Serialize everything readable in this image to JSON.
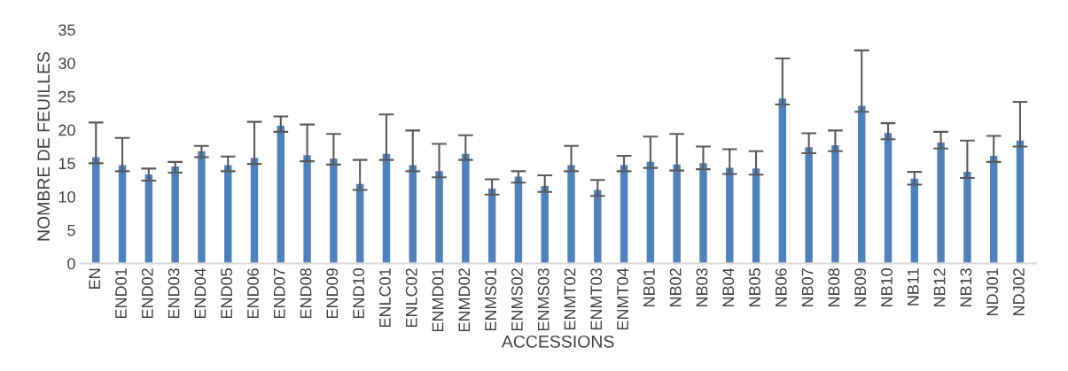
{
  "chart_data": {
    "type": "bar",
    "xlabel": "ACCESSIONS",
    "ylabel": "NOMBRE DE FEUILLES",
    "categories": [
      "EN",
      "END01",
      "END02",
      "END03",
      "END04",
      "END05",
      "END06",
      "END07",
      "END08",
      "END09",
      "END10",
      "ENLC01",
      "ENLC02",
      "ENMD01",
      "ENMD02",
      "ENMS01",
      "ENMS02",
      "ENMS03",
      "ENMT02",
      "ENMT03",
      "ENMT04",
      "NB01",
      "NB02",
      "NB03",
      "NB04",
      "NB05",
      "NB06",
      "NB07",
      "NB08",
      "NB09",
      "NB10",
      "NB11",
      "NB12",
      "NB13",
      "NDJ01",
      "NDJ02"
    ],
    "values": [
      16.0,
      14.8,
      13.4,
      14.6,
      16.9,
      14.8,
      15.9,
      20.7,
      16.3,
      15.8,
      12.0,
      16.5,
      14.8,
      13.9,
      16.5,
      11.3,
      13.1,
      11.7,
      14.8,
      11.1,
      14.8,
      15.3,
      14.9,
      15.1,
      14.4,
      14.3,
      24.8,
      17.5,
      17.8,
      23.7,
      19.6,
      12.8,
      18.2,
      13.8,
      16.2,
      18.5
    ],
    "errors": [
      [
        15.0,
        21.1
      ],
      [
        13.8,
        18.8
      ],
      [
        12.4,
        14.2
      ],
      [
        13.6,
        15.2
      ],
      [
        15.9,
        17.6
      ],
      [
        13.8,
        16.0
      ],
      [
        14.9,
        21.2
      ],
      [
        19.7,
        22.0
      ],
      [
        15.3,
        20.8
      ],
      [
        14.8,
        19.4
      ],
      [
        11.0,
        15.5
      ],
      [
        15.5,
        22.3
      ],
      [
        13.8,
        19.9
      ],
      [
        12.9,
        17.9
      ],
      [
        15.5,
        19.2
      ],
      [
        10.3,
        12.6
      ],
      [
        12.1,
        13.8
      ],
      [
        10.7,
        13.2
      ],
      [
        13.8,
        17.6
      ],
      [
        10.1,
        12.5
      ],
      [
        13.8,
        16.1
      ],
      [
        14.3,
        19.0
      ],
      [
        13.9,
        19.4
      ],
      [
        14.1,
        17.5
      ],
      [
        13.4,
        17.1
      ],
      [
        13.3,
        16.8
      ],
      [
        23.8,
        30.7
      ],
      [
        16.5,
        19.5
      ],
      [
        16.8,
        19.9
      ],
      [
        22.7,
        31.9
      ],
      [
        18.6,
        21.0
      ],
      [
        11.8,
        13.7
      ],
      [
        17.2,
        19.7
      ],
      [
        12.8,
        18.4
      ],
      [
        15.2,
        19.1
      ],
      [
        17.5,
        24.2
      ]
    ],
    "color": "#4f81bd",
    "ylim": [
      0,
      35
    ],
    "yticks": [
      0,
      5,
      10,
      15,
      20,
      25,
      30,
      35
    ],
    "grid": false,
    "legend": false
  }
}
